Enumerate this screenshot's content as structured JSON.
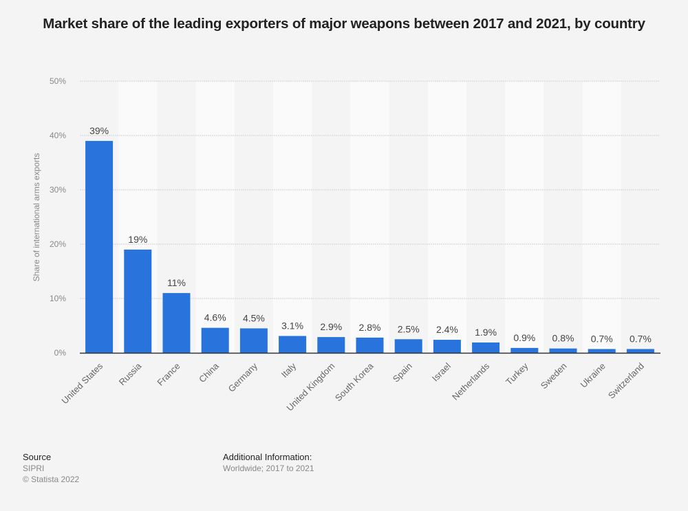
{
  "chart_data": {
    "type": "bar",
    "title": "Market share of the leading exporters of major weapons between 2017 and 2021, by country",
    "xlabel": "",
    "ylabel": "Share of international arms exports",
    "ylim": [
      0,
      50
    ],
    "yticks": [
      0,
      10,
      20,
      30,
      40,
      50
    ],
    "ytick_labels": [
      "0%",
      "10%",
      "20%",
      "30%",
      "40%",
      "50%"
    ],
    "grid": true,
    "categories": [
      "United States",
      "Russia",
      "France",
      "China",
      "Germany",
      "Italy",
      "United Kingdom",
      "South Korea",
      "Spain",
      "Israel",
      "Netherlands",
      "Turkey",
      "Sweden",
      "Ukraine",
      "Switzerland"
    ],
    "values": [
      39,
      19,
      11,
      4.6,
      4.5,
      3.1,
      2.9,
      2.8,
      2.5,
      2.4,
      1.9,
      0.9,
      0.8,
      0.7,
      0.7
    ],
    "data_labels": [
      "39%",
      "19%",
      "11%",
      "4.6%",
      "4.5%",
      "3.1%",
      "2.9%",
      "2.8%",
      "2.5%",
      "2.4%",
      "1.9%",
      "0.9%",
      "0.8%",
      "0.7%",
      "0.7%"
    ],
    "bar_color": "#2874dc"
  },
  "footer": {
    "source_heading": "Source",
    "source_name": "SIPRI",
    "copyright": "© Statista 2022",
    "additional_heading": "Additional Information:",
    "additional_text": "Worldwide; 2017 to 2021"
  }
}
